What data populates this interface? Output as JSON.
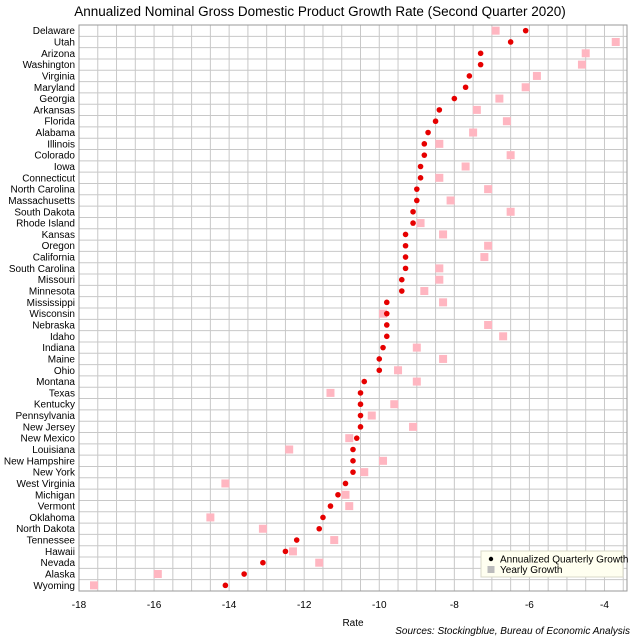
{
  "chart_data": {
    "type": "scatter",
    "title": "Annualized Nominal Gross Domestic Product Growth Rate (Second Quarter 2020)",
    "xlabel": "Rate",
    "ylabel": "",
    "xlim": [
      -18,
      -3.4
    ],
    "xticks": [
      "-18",
      "-16",
      "-14",
      "-12",
      "-10",
      "-8",
      "-6",
      "-4"
    ],
    "xtick_values": [
      -18,
      -16,
      -14,
      -12,
      -10,
      -8,
      -6,
      -4
    ],
    "grid": true,
    "legend_position": "bottom-right",
    "categories": [
      "Delaware",
      "Utah",
      "Arizona",
      "Washington",
      "Virginia",
      "Maryland",
      "Georgia",
      "Arkansas",
      "Florida",
      "Alabama",
      "Illinois",
      "Colorado",
      "Iowa",
      "Connecticut",
      "North Carolina",
      "Massachusetts",
      "South Dakota",
      "Rhode Island",
      "Kansas",
      "Oregon",
      "California",
      "South Carolina",
      "Missouri",
      "Minnesota",
      "Mississippi",
      "Wisconsin",
      "Nebraska",
      "Idaho",
      "Indiana",
      "Maine",
      "Ohio",
      "Montana",
      "Texas",
      "Kentucky",
      "Pennsylvania",
      "New Jersey",
      "New Mexico",
      "Louisiana",
      "New Hampshire",
      "New York",
      "West Virginia",
      "Michigan",
      "Vermont",
      "Oklahoma",
      "North Dakota",
      "Tennessee",
      "Hawaii",
      "Nevada",
      "Alaska",
      "Wyoming"
    ],
    "series": [
      {
        "name": "Annualized Quarterly Growth",
        "color": "#e60000",
        "values": [
          -6.1,
          -6.5,
          -7.3,
          -7.3,
          -7.6,
          -7.7,
          -8.0,
          -8.4,
          -8.5,
          -8.7,
          -8.8,
          -8.8,
          -8.9,
          -8.9,
          -9.0,
          -9.0,
          -9.1,
          -9.1,
          -9.3,
          -9.3,
          -9.3,
          -9.3,
          -9.4,
          -9.4,
          -9.8,
          -9.8,
          -9.8,
          -9.8,
          -9.9,
          -10.0,
          -10.0,
          -10.4,
          -10.5,
          -10.5,
          -10.5,
          -10.5,
          -10.6,
          -10.7,
          -10.7,
          -10.7,
          -10.9,
          -11.1,
          -11.3,
          -11.5,
          -11.6,
          -12.2,
          -12.5,
          -13.1,
          -13.6,
          -14.1
        ]
      },
      {
        "name": "Yearly Growth",
        "color": "#ffb6c1",
        "values": [
          -6.9,
          -3.7,
          -4.5,
          -4.6,
          -5.8,
          -6.1,
          -6.8,
          -7.4,
          -6.6,
          -7.5,
          -8.4,
          -6.5,
          -7.7,
          -8.4,
          -7.1,
          -8.1,
          -6.5,
          -8.9,
          -8.3,
          -7.1,
          -7.2,
          -8.4,
          -8.4,
          -8.8,
          -8.3,
          -9.9,
          -7.1,
          -6.7,
          -9.0,
          -8.3,
          -9.5,
          -9.0,
          -11.3,
          -9.6,
          -10.2,
          -9.1,
          -10.8,
          -12.4,
          -9.9,
          -10.4,
          -14.1,
          -10.9,
          -10.8,
          -14.5,
          -13.1,
          -11.2,
          -12.3,
          -11.6,
          -15.9,
          -17.6
        ]
      }
    ]
  },
  "source": "Sources: Stockingblue, Bureau of Economic Analysis"
}
